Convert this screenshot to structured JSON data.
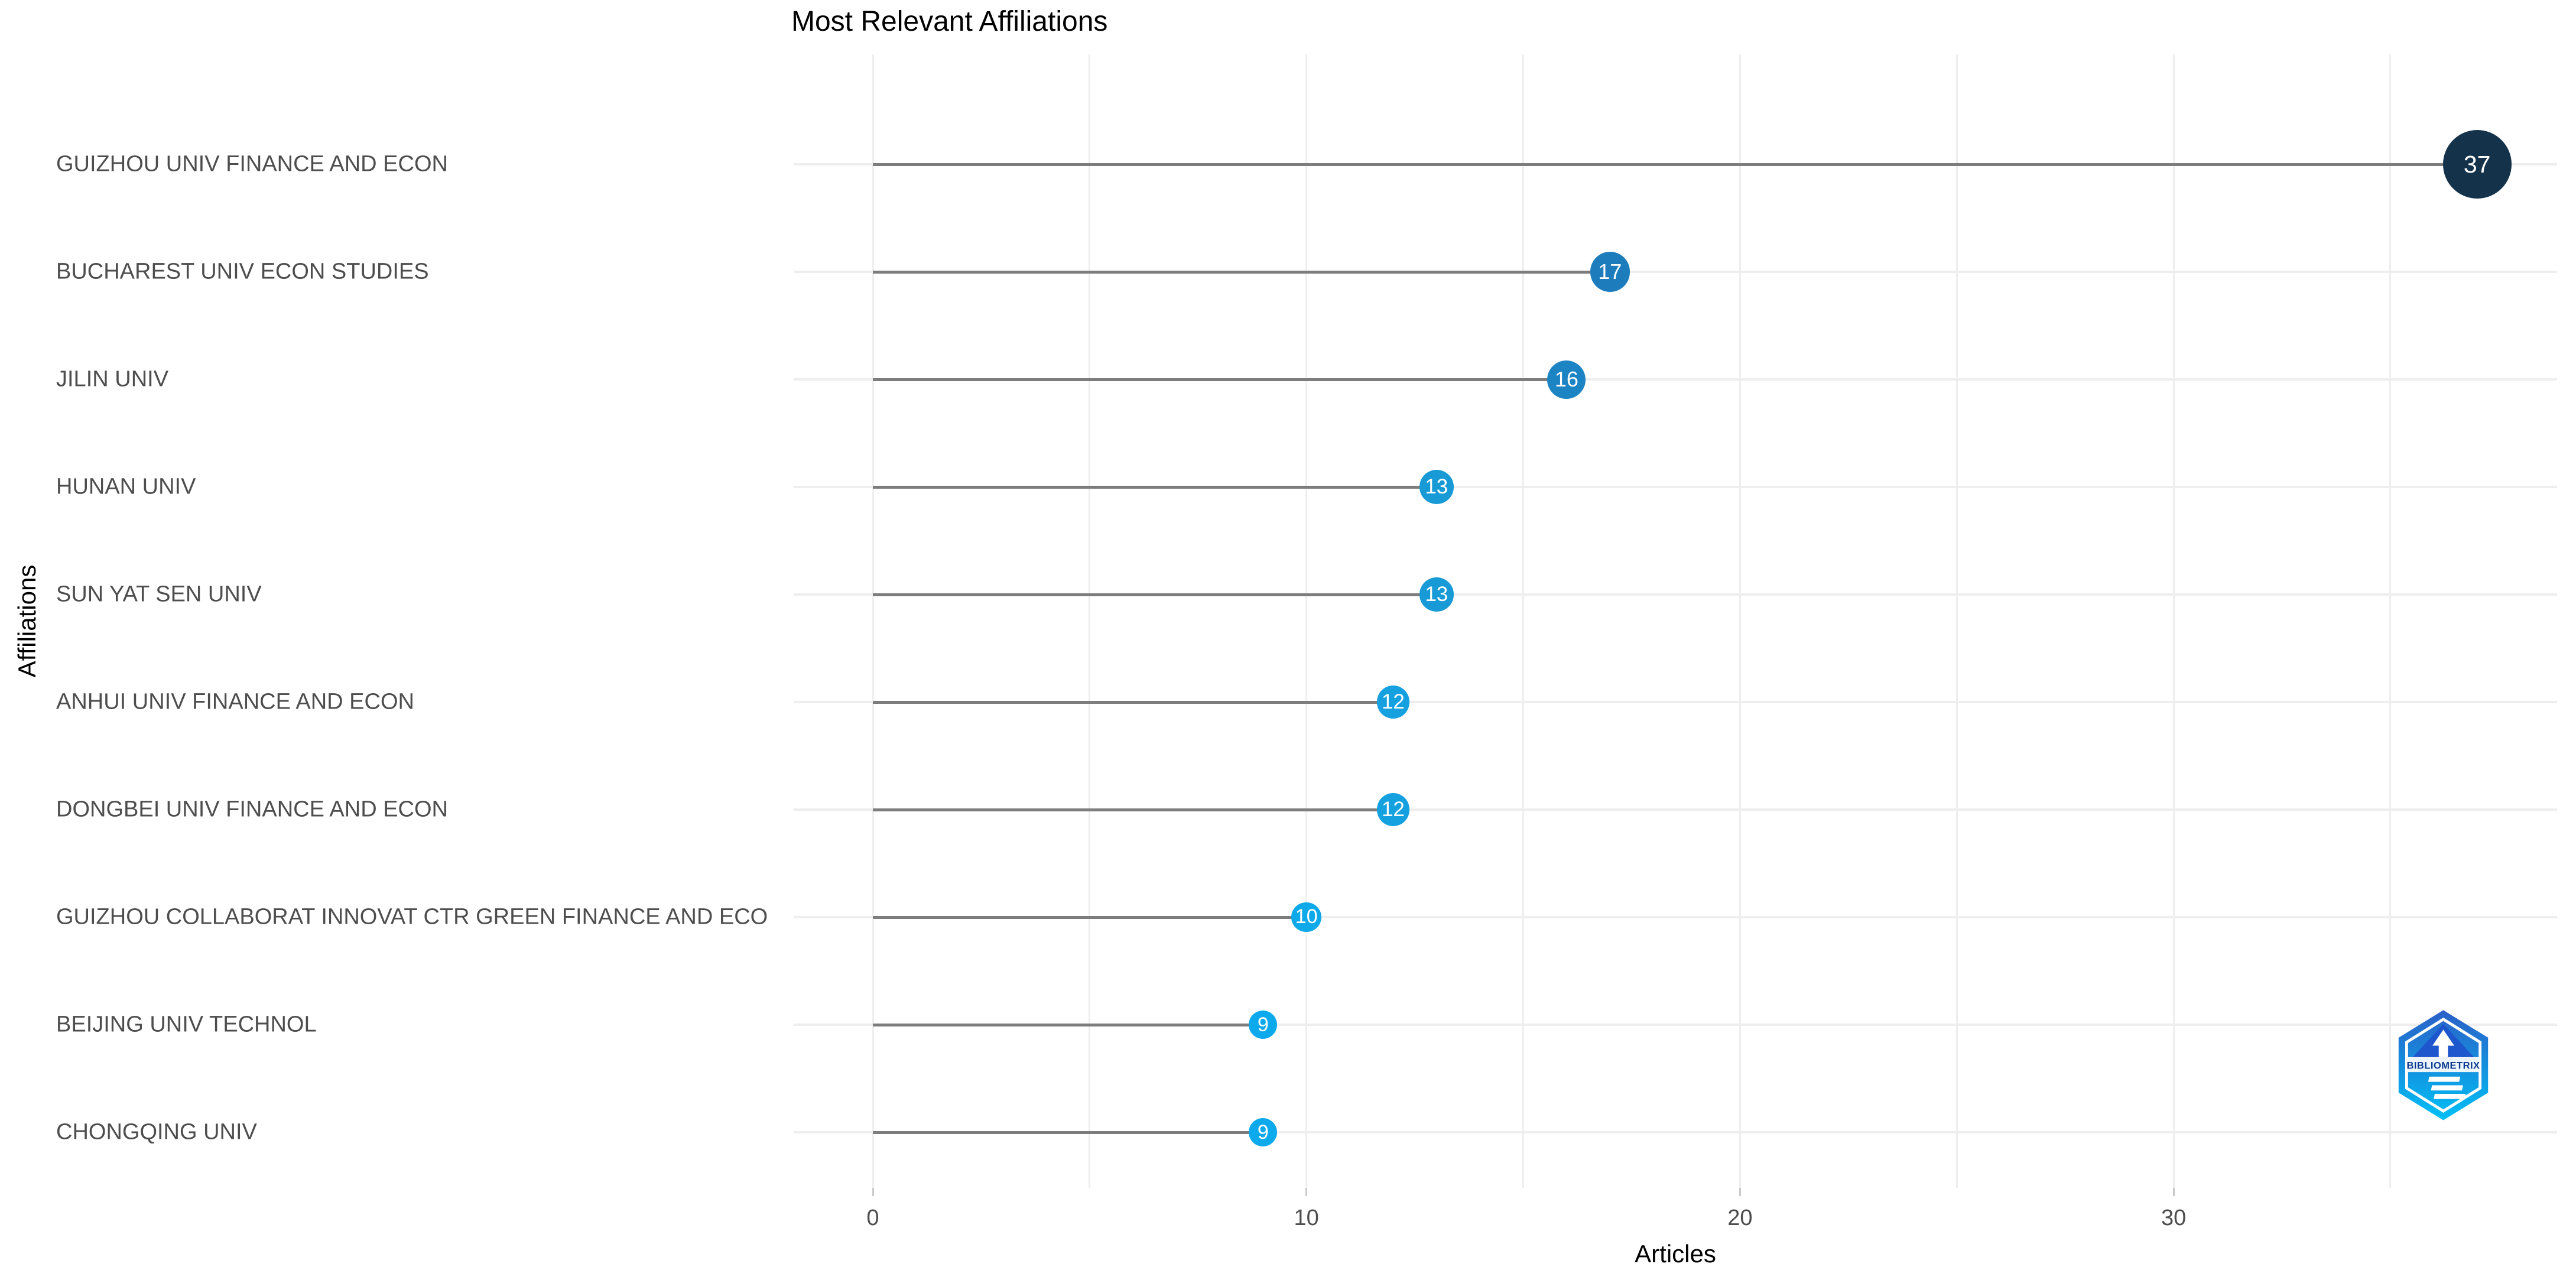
{
  "page": {
    "background": "#ffffff"
  },
  "chart_data": {
    "type": "scatter",
    "variant": "lollipop-dot-plot",
    "title": "Most Relevant Affiliations",
    "xlabel": "Articles",
    "ylabel": "Affiliations",
    "categories": [
      "GUIZHOU UNIV FINANCE AND ECON",
      "BUCHAREST UNIV ECON STUDIES",
      "JILIN UNIV",
      "HUNAN UNIV",
      "SUN YAT SEN UNIV",
      "ANHUI UNIV FINANCE AND ECON",
      "DONGBEI UNIV FINANCE AND ECON",
      "GUIZHOU COLLABORAT INNOVAT CTR GREEN FINANCE AND ECO",
      "BEIJING UNIV TECHNOL",
      "CHONGQING UNIV"
    ],
    "values": [
      37,
      17,
      16,
      13,
      13,
      12,
      12,
      10,
      9,
      9
    ],
    "point_labels": [
      "37",
      "17",
      "16",
      "13",
      "13",
      "12",
      "12",
      "10",
      "9",
      "9"
    ],
    "point_colors": [
      "#14334b",
      "#1d7dbc",
      "#1d84c4",
      "#179ad6",
      "#179ad6",
      "#15a1e0",
      "#15a1e0",
      "#0ea9e9",
      "#0caaec",
      "#0caaec"
    ],
    "x_ticks": [
      0,
      10,
      20,
      30
    ],
    "x_gridline_step": 5,
    "x_gridline_max": 35,
    "xlim": [
      -1.8,
      38.8
    ],
    "grid": true,
    "legend": "none",
    "stem_color": "#7d7d7d",
    "gridline_color": "#eeeeee",
    "axis_text_color": "#4d4d4d",
    "title_color": "#000000",
    "value_text_color": "#ffffff"
  },
  "logo": {
    "text": "BIBLIOMETRIX",
    "gradient_top": "#2b5fc7",
    "gradient_bottom": "#00c0f6",
    "text_color": "#0d3a8f"
  }
}
